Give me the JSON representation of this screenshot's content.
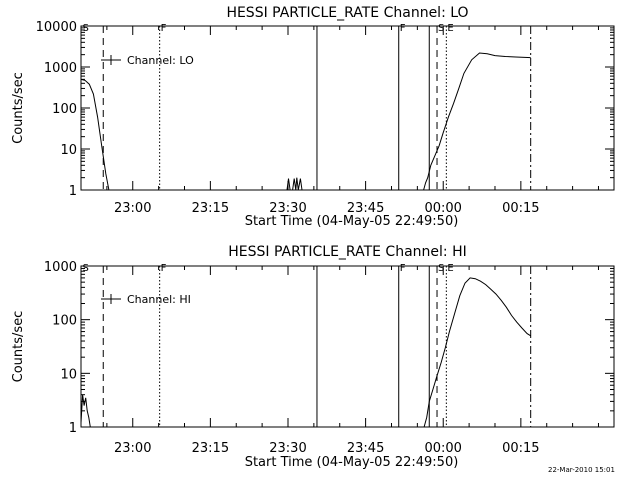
{
  "footer_stamp": "22-Mar-2010 15:01",
  "chart_data": [
    {
      "type": "line",
      "title": "HESSI PARTICLE_RATE Channel: LO",
      "ylabel": "Counts/sec",
      "xlabel": "Start Time (04-May-05 22:49:50)",
      "yscale": "log",
      "ylim": [
        1,
        10000
      ],
      "xlim": [
        0,
        103
      ],
      "xtick_values": [
        10,
        25,
        40,
        55,
        70,
        85
      ],
      "xtick_labels": [
        "23:00",
        "23:15",
        "23:30",
        "23:45",
        "00:00",
        "00:15"
      ],
      "ytick_values": [
        1,
        10,
        100,
        1000,
        10000
      ],
      "ytick_labels": [
        "1",
        "10",
        "100",
        "1000",
        "10000"
      ],
      "legend": {
        "label": "Channel: LO",
        "location": "top-left"
      },
      "markers": [
        {
          "x": 0.1,
          "label": "S",
          "style": "none"
        },
        {
          "x": 4.3,
          "label": "",
          "style": "dashed"
        },
        {
          "x": 15.2,
          "label": "F",
          "style": "dotted"
        },
        {
          "x": 45.6,
          "label": "",
          "style": "solid"
        },
        {
          "x": 61.4,
          "label": "F",
          "style": "solid"
        },
        {
          "x": 67.3,
          "label": "",
          "style": "solid"
        },
        {
          "x": 68.8,
          "label": "S",
          "style": "dashed"
        },
        {
          "x": 70.6,
          "label": "E",
          "style": "dotted"
        },
        {
          "x": 86.9,
          "label": "",
          "style": "dashdot"
        }
      ],
      "series": [
        {
          "x": [
            0,
            0.8,
            1.6,
            2.4,
            3.2,
            4.0,
            4.8,
            5.4
          ],
          "y": [
            500,
            470,
            380,
            220,
            60,
            12,
            2.5,
            1
          ]
        },
        {
          "x": [
            39.8,
            40.1,
            40.4,
            40.9,
            41.2,
            41.5,
            41.7,
            42.0,
            42.4,
            42.7
          ],
          "y": [
            1,
            1.9,
            1,
            1,
            1.9,
            1,
            2,
            1,
            1.9,
            1
          ]
        },
        {
          "x": [
            66.2,
            66.6,
            67.0,
            67.6,
            68.4,
            69.2,
            70.0,
            71.0,
            72.0,
            73.0,
            74.0,
            75.5,
            77.0,
            78.5,
            80.0,
            82.0,
            84.0,
            86.9
          ],
          "y": [
            1,
            1.5,
            2,
            4,
            7,
            12,
            25,
            60,
            130,
            300,
            700,
            1500,
            2200,
            2100,
            1900,
            1800,
            1750,
            1700
          ]
        }
      ]
    },
    {
      "type": "line",
      "title": "HESSI PARTICLE_RATE Channel: HI",
      "ylabel": "Counts/sec",
      "xlabel": "Start Time (04-May-05 22:49:50)",
      "yscale": "log",
      "ylim": [
        1,
        1000
      ],
      "xlim": [
        0,
        103
      ],
      "xtick_values": [
        10,
        25,
        40,
        55,
        70,
        85
      ],
      "xtick_labels": [
        "23:00",
        "23:15",
        "23:30",
        "23:45",
        "00:00",
        "00:15"
      ],
      "ytick_values": [
        1,
        10,
        100,
        1000
      ],
      "ytick_labels": [
        "1",
        "10",
        "100",
        "1000"
      ],
      "legend": {
        "label": "Channel: HI",
        "location": "top-left"
      },
      "markers": [
        {
          "x": 0.1,
          "label": "S",
          "style": "none"
        },
        {
          "x": 4.3,
          "label": "",
          "style": "dashed"
        },
        {
          "x": 15.2,
          "label": "F",
          "style": "dotted"
        },
        {
          "x": 45.6,
          "label": "",
          "style": "solid"
        },
        {
          "x": 61.4,
          "label": "F",
          "style": "solid"
        },
        {
          "x": 67.3,
          "label": "",
          "style": "solid"
        },
        {
          "x": 68.8,
          "label": "S",
          "style": "dashed"
        },
        {
          "x": 70.6,
          "label": "E",
          "style": "dotted"
        },
        {
          "x": 86.9,
          "label": "",
          "style": "dashdot"
        }
      ],
      "series": [
        {
          "x": [
            0,
            0.3,
            0.6,
            0.9,
            1.2,
            1.5,
            1.8
          ],
          "y": [
            1.2,
            4,
            2.5,
            3.5,
            2,
            1.5,
            1
          ]
        },
        {
          "x": [
            66.3,
            66.8,
            67.3,
            68.0,
            68.8,
            69.6,
            70.4,
            71.2,
            72.2,
            73.2,
            74.2,
            75.2,
            76.2,
            77.2,
            78.2,
            79.2,
            80.2,
            81.2,
            82.2,
            83.2,
            84.2,
            85.2,
            86.2,
            86.9
          ],
          "y": [
            1,
            1.5,
            3,
            5,
            9,
            16,
            30,
            60,
            130,
            280,
            480,
            600,
            580,
            520,
            450,
            370,
            300,
            230,
            170,
            120,
            90,
            70,
            55,
            50
          ]
        }
      ]
    }
  ]
}
